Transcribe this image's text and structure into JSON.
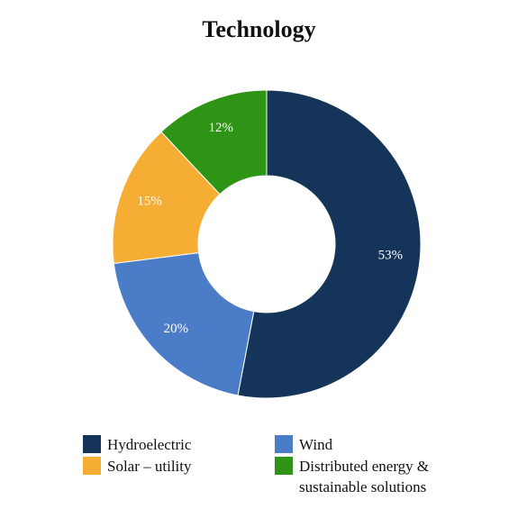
{
  "chart_data": {
    "type": "pie",
    "title": "Technology",
    "donut": true,
    "legend_position": "bottom",
    "slices": [
      {
        "label": "Hydroelectric",
        "value": 53,
        "display": "53%",
        "color": "#14345a"
      },
      {
        "label": "Wind",
        "value": 20,
        "display": "20%",
        "color": "#4a7cc8"
      },
      {
        "label": "Solar – utility",
        "value": 15,
        "display": "15%",
        "color": "#f5ae33"
      },
      {
        "label": "Distributed energy & sustainable solutions",
        "value": 12,
        "display": "12%",
        "color": "#2e9416"
      }
    ]
  }
}
